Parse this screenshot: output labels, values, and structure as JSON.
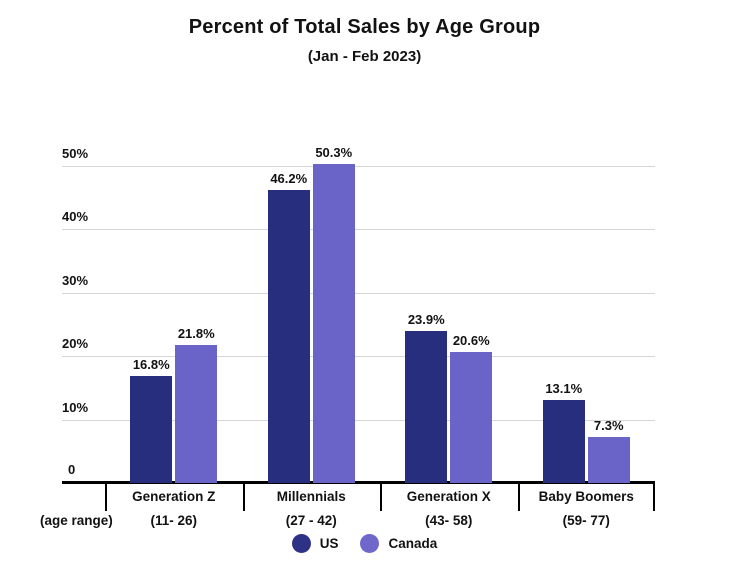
{
  "title": "Percent of Total Sales by Age Group",
  "subtitle": "(Jan - Feb 2023)",
  "axis_note": "(age range)",
  "y_axis": {
    "tick_labels": [
      "50%",
      "40%",
      "30%",
      "20%",
      "10%",
      "0"
    ],
    "tick_values": [
      50,
      40,
      30,
      20,
      10,
      0
    ]
  },
  "legend": {
    "items": [
      {
        "label": "US",
        "color": "#2d3287"
      },
      {
        "label": "Canada",
        "color": "#6f68ca"
      }
    ]
  },
  "colors": {
    "us_bar": "#282e7e",
    "canada_bar": "#6a63c8",
    "gridline": "#d6d6d6",
    "axis": "#000000",
    "text": "#121212"
  },
  "chart_data": {
    "type": "bar",
    "title": "Percent of Total Sales by Age Group",
    "subtitle": "(Jan - Feb 2023)",
    "categories": [
      "Generation Z",
      "Millennials",
      "Generation X",
      "Baby Boomers"
    ],
    "age_ranges": [
      "(11- 26)",
      "(27 - 42)",
      "(43- 58)",
      "(59- 77)"
    ],
    "series": [
      {
        "name": "US",
        "color": "#282e7e",
        "values": [
          16.8,
          46.2,
          23.9,
          13.1
        ],
        "labels": [
          "16.8%",
          "46.2%",
          "23.9%",
          "13.1%"
        ]
      },
      {
        "name": "Canada",
        "color": "#6a63c8",
        "values": [
          21.8,
          50.3,
          20.6,
          7.3
        ],
        "labels": [
          "21.8%",
          "50.3%",
          "20.6%",
          "7.3%"
        ]
      }
    ],
    "xlabel": "(age range)",
    "ylabel": "",
    "y_unit": "%",
    "ylim": [
      0,
      50
    ],
    "grid": true,
    "legend_position": "bottom"
  }
}
